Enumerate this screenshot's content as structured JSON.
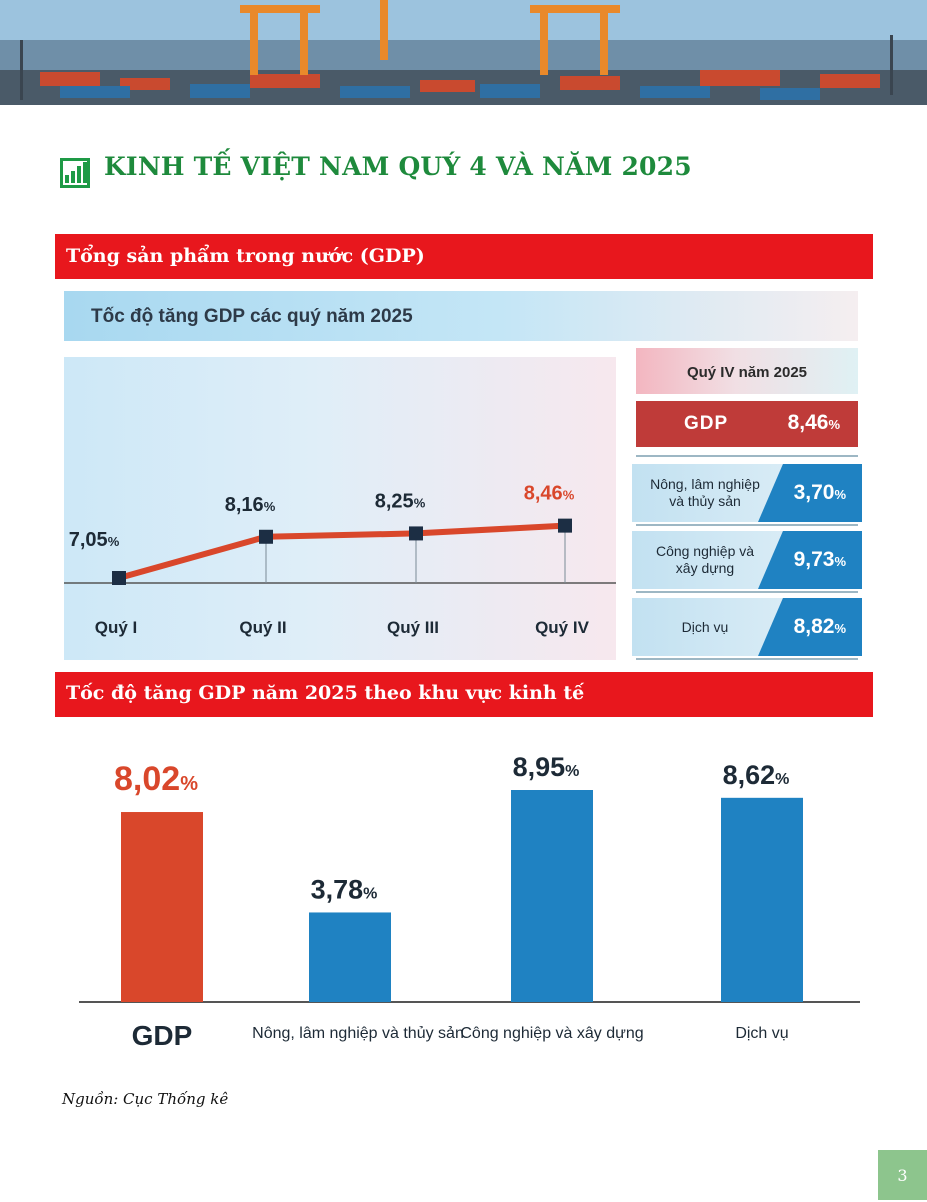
{
  "banner": {
    "icon": "port-containers-photo"
  },
  "page": {
    "title": "KINH TẾ VIỆT NAM QUÝ 4 VÀ NĂM 2025",
    "title_icon": "bar-chart-icon",
    "colors": {
      "title": "#1e8a3c",
      "section": "#e8171d",
      "accent_red": "#d9472b",
      "accent_blue": "#1f82c2"
    },
    "page_number": "3",
    "source": "Nguồn: Cục Thống kê"
  },
  "section1": {
    "label": "Tổng sản phẩm trong nước (GDP)"
  },
  "section2": {
    "label": "Tốc độ tăng GDP năm 2025 theo khu vực kinh tế"
  },
  "chart_data": [
    {
      "type": "line",
      "title": "Tốc độ tăng GDP các quý năm 2025",
      "categories": [
        "Quý I",
        "Quý II",
        "Quý III",
        "Quý IV"
      ],
      "values": [
        7.05,
        8.16,
        8.25,
        8.46
      ],
      "value_labels": [
        "7,05",
        "8,16",
        "8,25",
        "8,46"
      ],
      "unit": "%",
      "highlight_index": 3,
      "ylim": [
        6.0,
        9.5
      ]
    },
    {
      "type": "table",
      "title": "Quý IV năm 2025",
      "rows": [
        {
          "label": "GDP",
          "value": "8,46",
          "unit": "%"
        },
        {
          "label": "Nông, lâm nghiệp và thủy sản",
          "value": "3,70",
          "unit": "%"
        },
        {
          "label": "Công nghiệp và xây dựng",
          "value": "9,73",
          "unit": "%"
        },
        {
          "label": "Dịch vụ",
          "value": "8,82",
          "unit": "%"
        }
      ]
    },
    {
      "type": "bar",
      "categories": [
        "GDP",
        "Nông, lâm nghiệp và thủy sản",
        "Công nghiệp và xây dựng",
        "Dịch vụ"
      ],
      "values": [
        8.02,
        3.78,
        8.95,
        8.62
      ],
      "value_labels": [
        "8,02",
        "3,78",
        "8,95",
        "8,62"
      ],
      "unit": "%",
      "ylim": [
        0,
        10
      ],
      "colors": [
        "#d9472b",
        "#1f82c2",
        "#1f82c2",
        "#1f82c2"
      ]
    }
  ]
}
